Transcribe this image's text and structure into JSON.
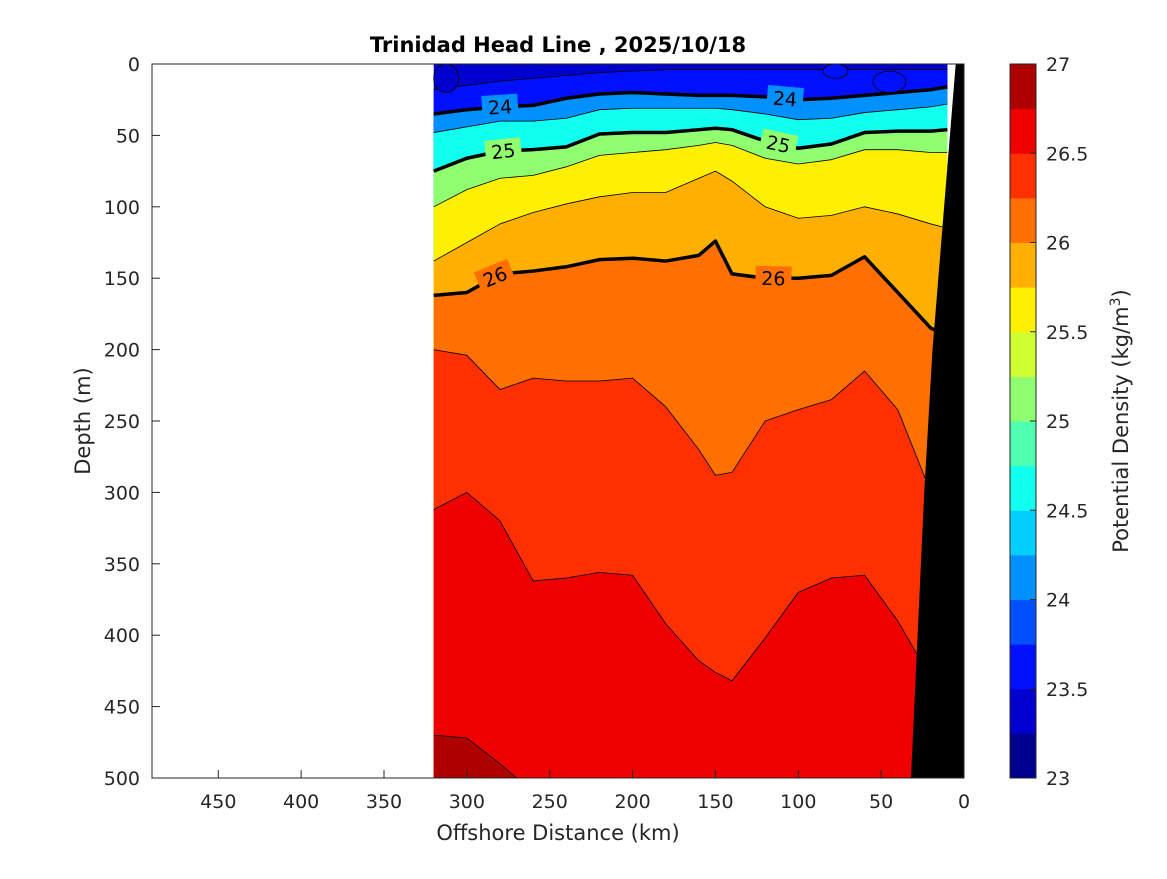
{
  "chart_data": {
    "type": "heatmap",
    "title": "Trinidad Head Line , 2025/10/18",
    "xlabel": "Offshore Distance (km)",
    "ylabel": "Depth (m)",
    "colorbar_label": "Potential Density (kg/m",
    "colorbar_label_exp": "3",
    "colorbar_label_close": ")",
    "xlim": [
      490,
      0
    ],
    "ylim": [
      0,
      500
    ],
    "x_reversed": true,
    "y_reversed": true,
    "xticks": [
      450,
      400,
      350,
      300,
      250,
      200,
      150,
      100,
      50,
      0
    ],
    "yticks": [
      0,
      50,
      100,
      150,
      200,
      250,
      300,
      350,
      400,
      450,
      500
    ],
    "clim": [
      23,
      27
    ],
    "colorbar_ticks": [
      27,
      26.5,
      26,
      25.5,
      25,
      24.5,
      24,
      23.5,
      23
    ],
    "data_extent_x": [
      320,
      10
    ],
    "contour_levels": [
      23,
      23.25,
      23.5,
      23.75,
      24,
      24.25,
      24.5,
      24.75,
      25,
      25.25,
      25.5,
      25.75,
      26,
      26.25,
      26.5,
      26.75,
      27
    ],
    "labeled_contours": [
      24,
      25,
      26
    ],
    "colormap": [
      "#00008f",
      "#0000cf",
      "#0010ff",
      "#0050ff",
      "#0090ff",
      "#00cfff",
      "#10ffef",
      "#50ffaf",
      "#90ff6f",
      "#cfff30",
      "#ffef00",
      "#ffaf00",
      "#ff7000",
      "#ff3000",
      "#ef0000",
      "#af0000"
    ],
    "stations_x": [
      320,
      300,
      280,
      260,
      240,
      220,
      200,
      180,
      160,
      150,
      140,
      120,
      100,
      80,
      60,
      40,
      20,
      10
    ],
    "isopycnals": [
      {
        "level": 23.5,
        "depth": [
          18,
          15,
          12,
          10,
          8,
          6,
          5,
          4,
          4,
          4,
          4,
          4,
          4,
          4,
          4,
          4,
          4,
          4
        ]
      },
      {
        "level": 24,
        "depth": [
          35,
          32,
          30,
          29,
          24,
          21,
          20,
          21,
          22,
          22,
          22,
          23,
          25,
          24,
          22,
          20,
          18,
          16
        ]
      },
      {
        "level": 24.5,
        "depth": [
          48,
          44,
          40,
          40,
          38,
          32,
          31,
          31,
          31,
          31,
          32,
          35,
          39,
          38,
          34,
          32,
          30,
          28
        ]
      },
      {
        "level": 25,
        "depth": [
          75,
          66,
          61,
          60,
          58,
          49,
          48,
          48,
          46,
          45,
          46,
          54,
          59,
          56,
          48,
          47,
          47,
          46
        ]
      },
      {
        "level": 25.5,
        "depth": [
          100,
          88,
          80,
          78,
          72,
          64,
          62,
          60,
          57,
          55,
          57,
          66,
          70,
          67,
          60,
          60,
          62,
          62
        ]
      },
      {
        "level": 25.75,
        "depth": [
          138,
          125,
          112,
          104,
          98,
          93,
          90,
          90,
          80,
          75,
          82,
          100,
          108,
          106,
          100,
          105,
          112,
          115
        ]
      },
      {
        "level": 26,
        "depth": [
          162,
          160,
          147,
          145,
          142,
          137,
          136,
          138,
          134,
          124,
          147,
          150,
          150,
          148,
          135,
          160,
          185,
          190
        ]
      },
      {
        "level": 26.25,
        "depth": [
          200,
          204,
          228,
          220,
          222,
          222,
          220,
          240,
          270,
          288,
          286,
          250,
          242,
          235,
          215,
          242,
          300,
          310
        ]
      },
      {
        "level": 26.5,
        "depth": [
          312,
          300,
          320,
          362,
          360,
          356,
          358,
          392,
          418,
          426,
          432,
          402,
          370,
          360,
          358,
          390,
          430,
          460
        ]
      },
      {
        "level": 26.75,
        "depth": [
          470,
          472,
          490,
          510,
          510,
          510,
          510,
          510,
          510,
          510,
          510,
          510,
          510,
          510,
          510,
          510,
          510,
          510
        ]
      }
    ],
    "surface_pools": [
      {
        "level": 23.25,
        "x": [
          320,
          305
        ],
        "depth": [
          0,
          20
        ]
      },
      {
        "level": 23.5,
        "x": [
          85,
          70
        ],
        "depth": [
          0,
          10
        ]
      },
      {
        "level": 23.5,
        "x": [
          55,
          35
        ],
        "depth": [
          5,
          20
        ]
      }
    ],
    "bathymetry_x_at_depth": [
      [
        5,
        0
      ],
      [
        12,
        100
      ],
      [
        19,
        200
      ],
      [
        24,
        300
      ],
      [
        28,
        400
      ],
      [
        32,
        500
      ]
    ]
  }
}
